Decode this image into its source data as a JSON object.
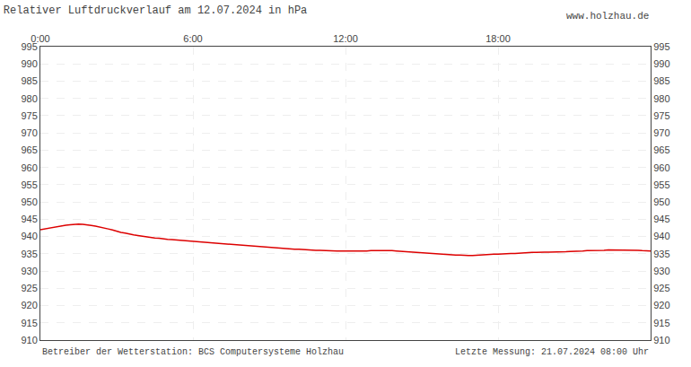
{
  "chart_data": {
    "type": "line",
    "title": "Relativer Luftdruckverlauf am 12.07.2024 in hPa",
    "annotations": [
      "www.holzhau.de",
      "Betreiber der Wetterstation: BCS Computersysteme Holzhau",
      "Letzte Messung: 21.07.2024 08:00 Uhr"
    ],
    "x": [
      0,
      10,
      20,
      30,
      40,
      50,
      60,
      70,
      80,
      90,
      100,
      110,
      120,
      130,
      140,
      150,
      160,
      170,
      180,
      190,
      200,
      210,
      220,
      230,
      240,
      250,
      260,
      270,
      280,
      290,
      300,
      310,
      320,
      330,
      340,
      350,
      360,
      370,
      380,
      390,
      400,
      410,
      420,
      430,
      440,
      450,
      460,
      470,
      480,
      490,
      500,
      510,
      520,
      530,
      540,
      550,
      560,
      570,
      580,
      590,
      600,
      610,
      620,
      630,
      640,
      650,
      660,
      670,
      680,
      690,
      700,
      710,
      720,
      730,
      740,
      750,
      760,
      770,
      780,
      790,
      800,
      810,
      820,
      830,
      840,
      850,
      860,
      870,
      880,
      890,
      900,
      910,
      920,
      930,
      940,
      950,
      960,
      970,
      980,
      990,
      1000,
      1010,
      1020,
      1030,
      1040,
      1050,
      1060,
      1070,
      1080,
      1090,
      1100,
      1110,
      1120,
      1130,
      1140,
      1150,
      1160,
      1170,
      1180,
      1190,
      1200,
      1210,
      1220,
      1230,
      1240,
      1250,
      1260,
      1270,
      1280,
      1290,
      1300,
      1310,
      1320,
      1330,
      1340,
      1350,
      1360,
      1370,
      1380,
      1390,
      1400,
      1410,
      1420,
      1430,
      1440
    ],
    "values": [
      942.0,
      942.2,
      942.5,
      942.8,
      943.0,
      943.2,
      943.3,
      943.4,
      943.5,
      943.6,
      943.5,
      943.4,
      943.2,
      943.0,
      942.8,
      942.5,
      942.2,
      941.9,
      941.5,
      941.2,
      941.0,
      940.7,
      940.5,
      940.3,
      940.1,
      940.0,
      939.8,
      939.6,
      939.5,
      939.3,
      939.2,
      939.1,
      939.0,
      938.9,
      938.8,
      938.7,
      938.6,
      938.5,
      938.4,
      938.3,
      938.2,
      938.1,
      938.0,
      937.9,
      937.8,
      937.7,
      937.6,
      937.5,
      937.4,
      937.3,
      937.2,
      937.1,
      937.0,
      936.9,
      936.8,
      936.7,
      936.6,
      936.5,
      936.5,
      936.4,
      936.3,
      936.3,
      936.2,
      936.2,
      936.1,
      936.0,
      936.0,
      935.9,
      935.9,
      935.8,
      935.8,
      935.8,
      935.8,
      935.7,
      935.7,
      935.7,
      935.8,
      935.8,
      935.9,
      935.9,
      936.0,
      936.0,
      936.0,
      935.9,
      935.8,
      935.7,
      935.6,
      935.5,
      935.4,
      935.3,
      935.2,
      935.1,
      935.0,
      934.9,
      934.8,
      934.8,
      934.7,
      934.7,
      934.6,
      934.6,
      934.5,
      934.5,
      934.5,
      934.6,
      934.7,
      934.8,
      934.8,
      934.9,
      934.9,
      935.0,
      935.0,
      935.1,
      935.1,
      935.2,
      935.2,
      935.3,
      935.4,
      935.4,
      935.5,
      935.5,
      935.5,
      935.5,
      935.6,
      935.6,
      935.6,
      935.7,
      935.7,
      935.8,
      935.8,
      935.9,
      935.9,
      936.0,
      936.0,
      936.0,
      936.1,
      936.1,
      936.1,
      936.1,
      936.0,
      936.0,
      936.0,
      936.0,
      935.9,
      935.9,
      935.8
    ],
    "color": "#dd0000",
    "xlim": [
      0,
      1440
    ],
    "xticks": [
      {
        "value": 0,
        "label": "0:00"
      },
      {
        "value": 360,
        "label": "6:00"
      },
      {
        "value": 720,
        "label": "12:00"
      },
      {
        "value": 1080,
        "label": "18:00"
      }
    ],
    "ylim": [
      910,
      995
    ],
    "yticks": [
      910,
      915,
      920,
      925,
      930,
      935,
      940,
      945,
      950,
      955,
      960,
      965,
      970,
      975,
      980,
      985,
      990,
      995
    ],
    "y2lim": [
      910,
      995
    ],
    "y2ticks": [
      910,
      915,
      920,
      925,
      930,
      935,
      940,
      945,
      950,
      955,
      960,
      965,
      970,
      975,
      980,
      985,
      990,
      995
    ],
    "grid": true
  }
}
